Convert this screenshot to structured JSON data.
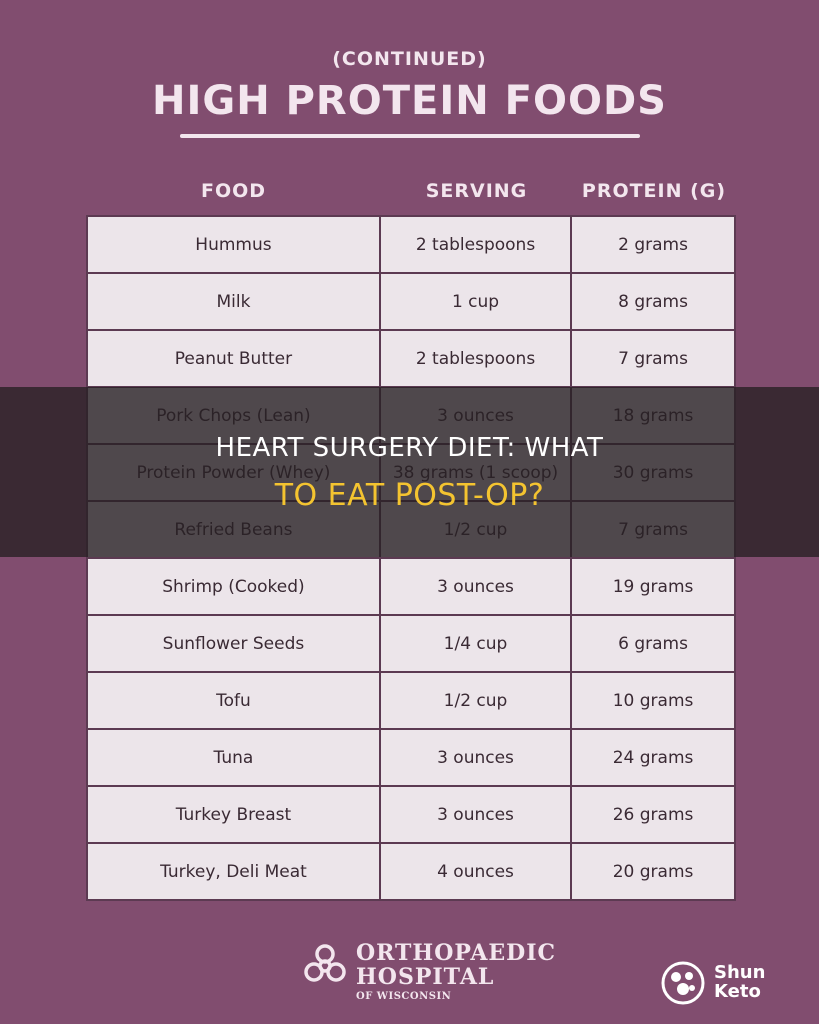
{
  "header": {
    "subtitle": "(CONTINUED)",
    "title": "HIGH PROTEIN FOODS"
  },
  "table": {
    "columns": [
      "FOOD",
      "SERVING",
      "PROTEIN (G)"
    ],
    "rows": [
      [
        "Hummus",
        "2 tablespoons",
        "2 grams"
      ],
      [
        "Milk",
        "1 cup",
        "8 grams"
      ],
      [
        "Peanut Butter",
        "2 tablespoons",
        "7 grams"
      ],
      [
        "Pork Chops (Lean)",
        "3 ounces",
        "18 grams"
      ],
      [
        "Protein Powder (Whey)",
        "38 grams (1 scoop)",
        "30 grams"
      ],
      [
        "Refried Beans",
        "1/2 cup",
        "7 grams"
      ],
      [
        "Shrimp (Cooked)",
        "3 ounces",
        "19 grams"
      ],
      [
        "Sunflower Seeds",
        "1/4 cup",
        "6 grams"
      ],
      [
        "Tofu",
        "1/2 cup",
        "10 grams"
      ],
      [
        "Tuna",
        "3 ounces",
        "24 grams"
      ],
      [
        "Turkey Breast",
        "3 ounces",
        "26 grams"
      ],
      [
        "Turkey, Deli Meat",
        "4 ounces",
        "20 grams"
      ]
    ]
  },
  "overlay": {
    "line1": "HEART SURGERY DIET: WHAT",
    "line2": "TO EAT POST-OP?"
  },
  "footer": {
    "hospital_line1": "ORTHOPAEDIC",
    "hospital_line2": "HOSPITAL",
    "hospital_line3": "OF WISCONSIN",
    "brand_line1": "Shun",
    "brand_line2": "Keto"
  },
  "colors": {
    "background": "#814d6f",
    "table_cell": "#ece5ea",
    "overlay_highlight": "#f4c430"
  }
}
